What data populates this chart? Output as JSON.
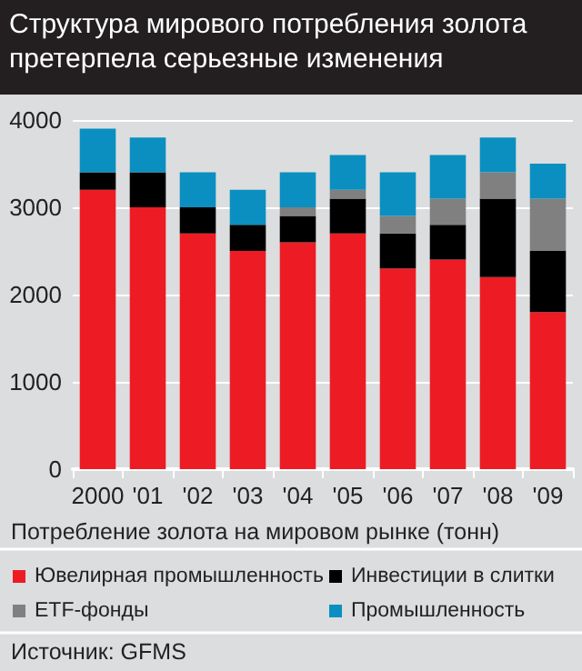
{
  "chart_data": {
    "type": "bar",
    "title": "Структура мирового потребления золота претерпела серьезные изменения",
    "xlabel": "Потребление золота на мировом рынке (тонн)",
    "categories": [
      "2000",
      "'01",
      "'02",
      "'03",
      "'04",
      "'05",
      "'06",
      "'07",
      "'08",
      "'09"
    ],
    "stacked": true,
    "series": [
      {
        "name": "Ювелирная промышленность",
        "color": "#ed1c24",
        "values": [
          3200,
          3000,
          2700,
          2500,
          2600,
          2700,
          2300,
          2400,
          2200,
          1800
        ]
      },
      {
        "name": "Инвестиции в слитки",
        "color": "#000000",
        "values": [
          200,
          400,
          300,
          300,
          300,
          400,
          400,
          400,
          900,
          700
        ]
      },
      {
        "name": "ETF-фонды",
        "color": "#808080",
        "values": [
          0,
          0,
          0,
          0,
          100,
          100,
          200,
          300,
          300,
          600
        ]
      },
      {
        "name": "Промышленность",
        "color": "#0a8fc0",
        "values": [
          500,
          400,
          400,
          400,
          400,
          400,
          500,
          500,
          400,
          400
        ]
      }
    ],
    "ylim": [
      0,
      4000
    ],
    "yticks": [
      0,
      1000,
      2000,
      3000,
      4000
    ],
    "grid": "y",
    "legend": "bottom",
    "annotations": [
      "Источник: GFMS"
    ]
  }
}
